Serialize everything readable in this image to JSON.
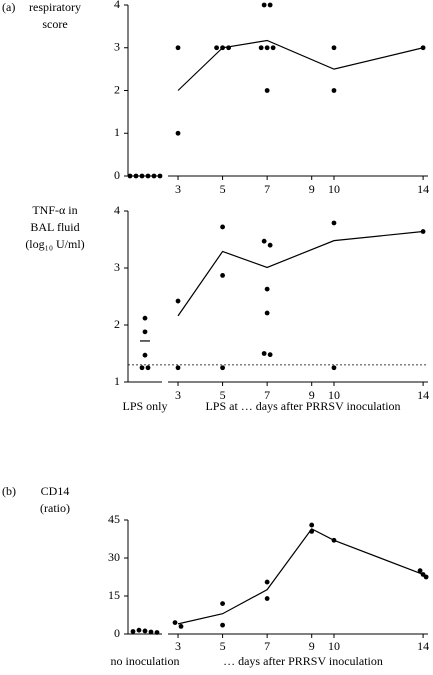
{
  "chart_data": [
    {
      "type": "scatter",
      "panel_label": "(a)",
      "y_label": [
        "respiratory",
        "score"
      ],
      "ylim": [
        0,
        4
      ],
      "yticks": [
        0,
        1,
        2,
        3,
        4
      ],
      "xlim": [
        2.55,
        14.22
      ],
      "xticks": [
        3,
        5,
        7,
        9,
        10,
        14
      ],
      "control": {
        "values": [
          0,
          0,
          0,
          0,
          0,
          0
        ]
      },
      "points": {
        "x": [
          3,
          3,
          5,
          5,
          5,
          7,
          7,
          7,
          7,
          7,
          7,
          10,
          10,
          14
        ],
        "y": [
          3,
          1,
          3,
          3,
          3,
          4,
          4,
          3,
          3,
          3,
          2,
          3,
          2,
          3
        ]
      },
      "mean": {
        "x": [
          3,
          5,
          7,
          10,
          14
        ],
        "y": [
          2,
          3,
          3.17,
          2.5,
          3
        ]
      },
      "color": "#000000"
    },
    {
      "type": "scatter",
      "y_label": [
        "TNF-α in",
        "BAL fluid",
        "(log₁₀ U/ml)"
      ],
      "ylim": [
        1,
        4
      ],
      "yticks": [
        1,
        2,
        3,
        4
      ],
      "xlim": [
        2.55,
        14.22
      ],
      "xticks": [
        3,
        5,
        7,
        9,
        10,
        14
      ],
      "control": {
        "label": "LPS only",
        "values": [
          2.12,
          1.88,
          1.47,
          1.25,
          1.25
        ],
        "mean": 1.72
      },
      "threshold": 1.3,
      "x_label": "LPS at … days after PRRSV inoculation",
      "points": {
        "x": [
          3,
          3,
          5,
          5,
          5,
          7,
          7,
          7,
          7,
          7,
          7,
          10,
          10,
          14
        ],
        "y": [
          2.42,
          1.25,
          3.72,
          2.87,
          1.25,
          3.47,
          3.4,
          2.63,
          2.21,
          1.5,
          1.48,
          3.79,
          1.25,
          3.64
        ]
      },
      "mean": {
        "x": [
          3,
          5,
          7,
          10,
          14
        ],
        "y": [
          2.16,
          3.29,
          3.01,
          3.48,
          3.64
        ]
      },
      "color": "#000000"
    },
    {
      "type": "scatter",
      "panel_label": "(b)",
      "y_label": [
        "CD14",
        "(ratio)"
      ],
      "ylim": [
        0,
        45
      ],
      "yticks": [
        0,
        15,
        30,
        45
      ],
      "xlim": [
        2.55,
        14.22
      ],
      "xticks": [
        3,
        5,
        7,
        9,
        10,
        14
      ],
      "control": {
        "label": "no inoculation",
        "values": [
          1,
          1.5,
          1.2,
          0.8,
          0.6
        ]
      },
      "x_label": "… days after PRRSV inoculation",
      "points": {
        "x": [
          3,
          3,
          5,
          5,
          7,
          7,
          9,
          9,
          10,
          14,
          14,
          14
        ],
        "y": [
          4.5,
          3,
          12,
          3.5,
          20.5,
          14,
          43,
          40.5,
          37,
          25,
          23.5,
          22.5
        ]
      },
      "mean": {
        "x": [
          3,
          5,
          7,
          9,
          10,
          14
        ],
        "y": [
          4,
          8,
          17.5,
          41.5,
          37,
          23.5
        ]
      },
      "color": "#000000"
    }
  ]
}
